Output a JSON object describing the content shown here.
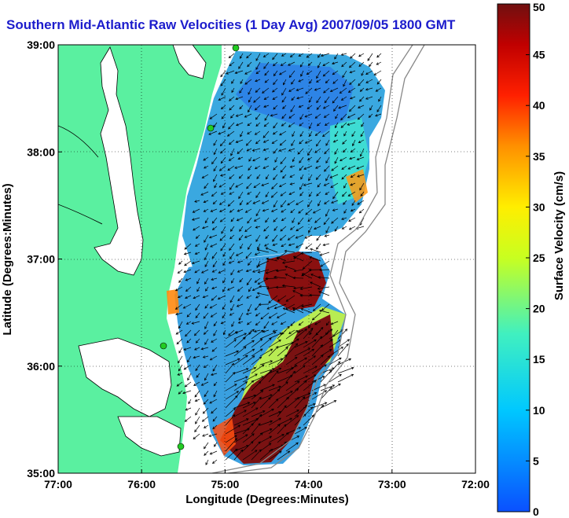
{
  "title": "Southern Mid-Atlantic Raw Velocities (1 Day Avg) 2007/09/05 1800 GMT",
  "xaxis": {
    "label": "Longitude (Degrees:Minutes)",
    "ticks": [
      "77:00",
      "76:00",
      "75:00",
      "74:00",
      "73:00",
      "72:00"
    ],
    "range": [
      -77,
      -72
    ]
  },
  "yaxis": {
    "label": "Latitude (Degrees:Minutes)",
    "ticks": [
      "35:00",
      "36:00",
      "37:00",
      "38:00",
      "39:00"
    ],
    "range": [
      35,
      39
    ]
  },
  "colorbar": {
    "label": "Surface Velocity (cm/s)",
    "ticks": [
      "0",
      "5",
      "10",
      "15",
      "20",
      "25",
      "30",
      "35",
      "40",
      "45",
      "50"
    ],
    "range": [
      0,
      50
    ]
  },
  "colors": {
    "land": "#5af0a0",
    "title": "#1c1ccc",
    "station": "#22cc22"
  },
  "grid": true
}
